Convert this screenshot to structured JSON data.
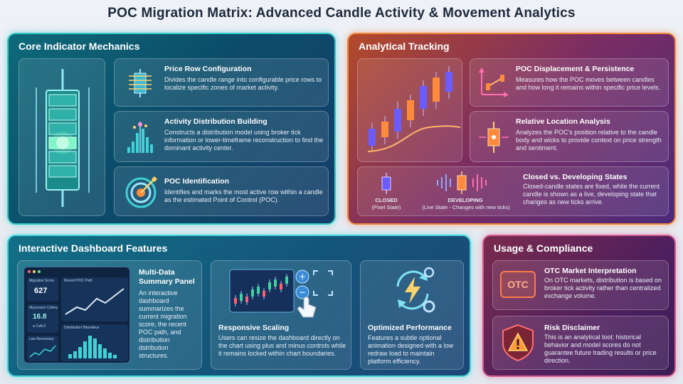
{
  "title": "POC Migration Matrix: Advanced Candle Activity & Movement Analytics",
  "core": {
    "title": "Core Indicator Mechanics",
    "cards": [
      {
        "title": "Price Row Configuration",
        "desc": "Divides the candle range into configurable price rows to localize specific zones of market activity."
      },
      {
        "title": "Activity Distribution Building",
        "desc": "Constructs a distribution model using broker tick information or lower-timeframe reconstruction to find the dominant activity center."
      },
      {
        "title": "POC Identification",
        "desc": "Identifies and marks the most active row within a candle as the estimated Point of Control (POC)."
      }
    ]
  },
  "analytic": {
    "title": "Analytical Tracking",
    "cards": [
      {
        "title": "POC Displacement & Persistence",
        "desc": "Measures how the POC moves between candles and how long it remains within specific price levels."
      },
      {
        "title": "Relative Location Analysis",
        "desc": "Analyzes the POC's position relative to the candle body and wicks to provide context on price strength and sentiment."
      },
      {
        "title": "Closed vs. Developing States",
        "desc": "Closed-candle states are fixed, while the current candle is shown as a live, developing state that changes as new ticks arrive."
      }
    ],
    "closed_label": "CLOSED",
    "closed_sub": "(Pixel State)",
    "developing_label": "DEVELOPING",
    "developing_sub": "(Live State - Changes with new ticks)"
  },
  "dash": {
    "title": "Interactive Dashboard Features",
    "mini": {
      "migration_label": "Migration Score",
      "migration_value": "627",
      "recent_label": "Recent POC Path",
      "session_label": "Mycession Colisry",
      "session_value": "16.8",
      "session_sub": "● Cvkl.0",
      "live_label": "Live Recoonary",
      "dist_label": "Distribution Bitoxideus"
    },
    "cards": [
      {
        "title": "Multi-Data Summary Panel",
        "desc": "An interactive dashboard summarizes the current migration score, the recent POC path, and distribution dstribution structures."
      },
      {
        "title": "Responsive Scaling",
        "desc": "Users can resize the dashboard directly on the chart using plus and minus controls while it remains locked within chart boundaries."
      },
      {
        "title": "Optimized Performance",
        "desc": "Features a subtle optional animation designed with a low redraw load to maintain platform efficiency."
      }
    ]
  },
  "usage": {
    "title": "Usage & Compliance",
    "cards": [
      {
        "title": "OTC Market Interpretation",
        "desc": "On OTC markets, distribution is based on broker tick activity rather than centralized exchange volume.",
        "badge": "OTC"
      },
      {
        "title": "Risk Disclaimer",
        "desc": "This is an analytical tool; historical behavior and model scores do not guarantee future trading results or price direction."
      }
    ]
  },
  "colors": {
    "teal": "#35c9c4",
    "orange": "#f0873c",
    "magenta": "#d65a8c",
    "cyan": "#3fd3d8"
  }
}
